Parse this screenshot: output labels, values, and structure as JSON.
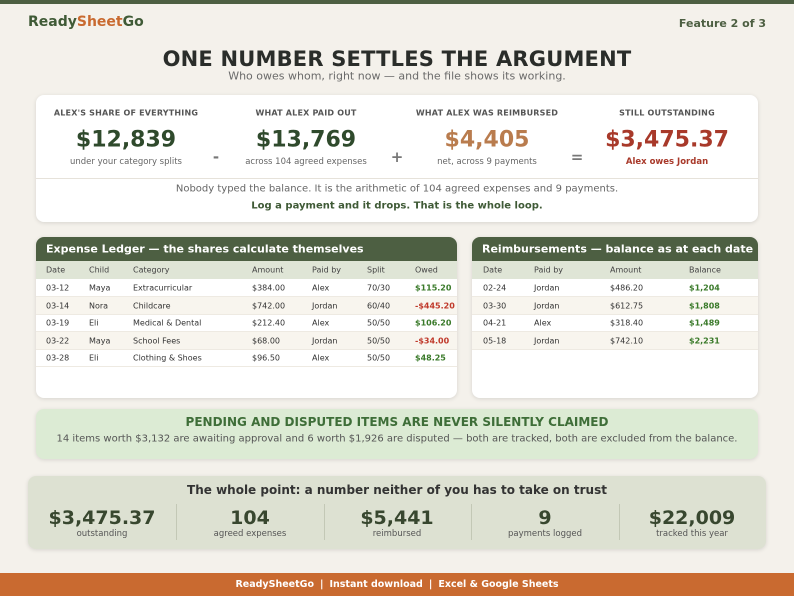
{
  "header": {
    "brand": [
      "Ready",
      "Sheet",
      "Go"
    ],
    "feature": "Feature 2 of 3"
  },
  "hero": {
    "title": "ONE NUMBER SETTLES THE ARGUMENT",
    "subtitle": "Who owes whom, right now — and the file shows its working."
  },
  "summary_card": {
    "metrics": [
      {
        "label": "ALEX'S SHARE OF EVERYTHING",
        "value": "$12,839",
        "note": "under your category splits",
        "color": "#2f4a2c"
      },
      {
        "label": "WHAT ALEX PAID OUT",
        "value": "$13,769",
        "note": "across 104 agreed expenses",
        "color": "#2f4a2c"
      },
      {
        "label": "WHAT ALEX WAS REIMBURSED",
        "value": "$4,405",
        "note": "net, across 9 payments",
        "color": "#b97c4e"
      },
      {
        "label": "STILL OUTSTANDING",
        "value": "$3,475.37",
        "note": "Alex owes Jordan",
        "color": "#a8392a"
      }
    ],
    "operators": [
      "-",
      "+",
      "="
    ],
    "footnote": [
      "Nobody typed the balance. It is the arithmetic of 104 agreed expenses and 9 payments.",
      "Log a payment and it drops. That is the whole loop."
    ]
  },
  "ledger": {
    "title": "Expense Ledger — the shares calculate themselves",
    "columns": [
      "Date",
      "Child",
      "Category",
      "Amount",
      "Paid by",
      "Split",
      "Owed"
    ],
    "rows": [
      [
        "03-12",
        "Maya",
        "Extracurricular",
        "$384.00",
        "Alex",
        "70/30",
        "$115.20"
      ],
      [
        "03-14",
        "Nora",
        "Childcare",
        "$742.00",
        "Jordan",
        "60/40",
        "-$445.20"
      ],
      [
        "03-19",
        "Eli",
        "Medical & Dental",
        "$212.40",
        "Alex",
        "50/50",
        "$106.20"
      ],
      [
        "03-22",
        "Maya",
        "School Fees",
        "$68.00",
        "Jordan",
        "50/50",
        "-$34.00"
      ],
      [
        "03-28",
        "Eli",
        "Clothing & Shoes",
        "$96.50",
        "Alex",
        "50/50",
        "$48.25"
      ]
    ]
  },
  "reimbursements": {
    "title": "Reimbursements — balance as at each date",
    "columns": [
      "Date",
      "Paid by",
      "Amount",
      "Balance"
    ],
    "rows": [
      [
        "02-24",
        "Jordan",
        "$486.20",
        "$1,204"
      ],
      [
        "03-30",
        "Jordan",
        "$612.75",
        "$1,808"
      ],
      [
        "04-21",
        "Alex",
        "$318.40",
        "$1,489"
      ],
      [
        "05-18",
        "Jordan",
        "$742.10",
        "$2,231"
      ]
    ]
  },
  "notice": {
    "title": "PENDING AND DISPUTED ITEMS ARE NEVER SILENTLY CLAIMED",
    "text": "14 items worth $3,132 are awaiting approval and 6 worth $1,926 are disputed — both are tracked, both are excluded from the balance."
  },
  "totals": {
    "title": "The whole point: a number neither of you has to take on trust",
    "stats": [
      {
        "value": "$3,475.37",
        "label": "outstanding"
      },
      {
        "value": "104",
        "label": "agreed expenses"
      },
      {
        "value": "$5,441",
        "label": "reimbursed"
      },
      {
        "value": "9",
        "label": "payments logged"
      },
      {
        "value": "$22,009",
        "label": "tracked this year"
      }
    ]
  },
  "footer": {
    "items": [
      "ReadySheetGo",
      "Instant download",
      "Excel & Google Sheets"
    ],
    "separator": "|"
  }
}
